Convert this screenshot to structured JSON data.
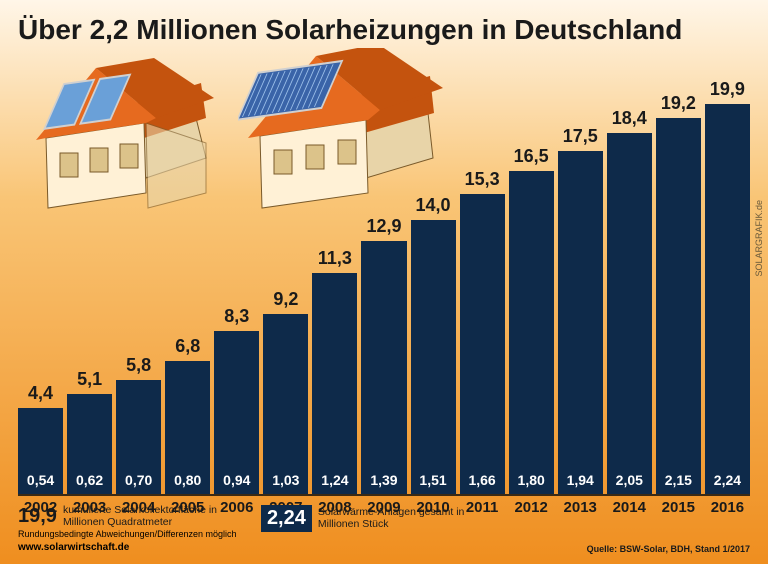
{
  "title": "Über 2,2 Millionen Solarheizungen in Deutschland",
  "chart": {
    "type": "bar",
    "bar_color": "#0e2a4a",
    "top_label_color": "#1a1a1a",
    "in_label_color": "#ffffff",
    "year_color": "#1a1a1a",
    "baseline_color": "#3a2a15",
    "background_gradient": [
      "#fff6e8",
      "#f9c576",
      "#ef8e1f"
    ],
    "ymax": 19.9,
    "top_fontsize": 18,
    "in_fontsize": 14,
    "year_fontsize": 15,
    "bars": [
      {
        "year": "2002",
        "area": "4,4",
        "area_v": 4.4,
        "systems": "0,54"
      },
      {
        "year": "2003",
        "area": "5,1",
        "area_v": 5.1,
        "systems": "0,62"
      },
      {
        "year": "2004",
        "area": "5,8",
        "area_v": 5.8,
        "systems": "0,70"
      },
      {
        "year": "2005",
        "area": "6,8",
        "area_v": 6.8,
        "systems": "0,80"
      },
      {
        "year": "2006",
        "area": "8,3",
        "area_v": 8.3,
        "systems": "0,94"
      },
      {
        "year": "2007",
        "area": "9,2",
        "area_v": 9.2,
        "systems": "1,03"
      },
      {
        "year": "2008",
        "area": "11,3",
        "area_v": 11.3,
        "systems": "1,24"
      },
      {
        "year": "2009",
        "area": "12,9",
        "area_v": 12.9,
        "systems": "1,39"
      },
      {
        "year": "2010",
        "area": "14,0",
        "area_v": 14.0,
        "systems": "1,51"
      },
      {
        "year": "2011",
        "area": "15,3",
        "area_v": 15.3,
        "systems": "1,66"
      },
      {
        "year": "2012",
        "area": "16,5",
        "area_v": 16.5,
        "systems": "1,80"
      },
      {
        "year": "2013",
        "area": "17,5",
        "area_v": 17.5,
        "systems": "1,94"
      },
      {
        "year": "2014",
        "area": "18,4",
        "area_v": 18.4,
        "systems": "2,05"
      },
      {
        "year": "2015",
        "area": "19,2",
        "area_v": 19.2,
        "systems": "2,15"
      },
      {
        "year": "2016",
        "area": "19,9",
        "area_v": 19.9,
        "systems": "2,24"
      }
    ]
  },
  "legend": {
    "area_value": "19,9",
    "area_text": "kumulierte Solarkollektorfläche in Millionen Quadratmeter",
    "systems_value": "2,24",
    "systems_text": "Solarwärme-Anlagen gesamt in Millionen Stück"
  },
  "footer": {
    "rounding": "Rundungsbedingte Abweichungen/Differenzen möglich",
    "site": "www.solarwirtschaft.de",
    "source": "Quelle: BSW-Solar, BDH, Stand 1/2017",
    "vsource": "SOLARGRAFIK.de"
  },
  "houses": {
    "roof_color": "#e66a1f",
    "roof_shadow": "#c4530e",
    "wall_color": "#fff1d6",
    "wall_shade": "#e8d4a8",
    "outline": "#7a5a2a",
    "panel_a": "#6aa0d8",
    "panel_b": "#3a64a8",
    "panel_frame": "#d0d0d0"
  }
}
